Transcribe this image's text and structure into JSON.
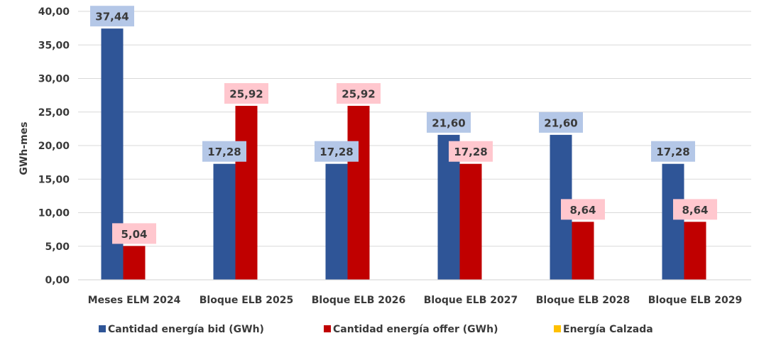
{
  "chart_data": {
    "type": "bar",
    "title": "",
    "xlabel": "",
    "ylabel": "GWh-mes",
    "ylim": [
      0,
      40
    ],
    "yticks": [
      "0,00",
      "5,00",
      "10,00",
      "15,00",
      "20,00",
      "25,00",
      "30,00",
      "35,00",
      "40,00"
    ],
    "grid": true,
    "legend_position": "bottom",
    "categories": [
      "Meses ELM 2024",
      "Bloque ELB 2025",
      "Bloque ELB 2026",
      "Bloque ELB 2027",
      "Bloque ELB 2028",
      "Bloque ELB 2029"
    ],
    "series": [
      {
        "name": "Cantidad energía bid (GWh)",
        "color": "#2F5597",
        "label_bg": "#B4C7E7",
        "values": [
          37.44,
          17.28,
          17.28,
          21.6,
          21.6,
          17.28
        ],
        "labels": [
          "37,44",
          "17,28",
          "17,28",
          "21,60",
          "21,60",
          "17,28"
        ]
      },
      {
        "name": "Cantidad energía offer (GWh)",
        "color": "#C00000",
        "label_bg": "#FFC7CE",
        "values": [
          5.04,
          25.92,
          25.92,
          17.28,
          8.64,
          8.64
        ],
        "labels": [
          "5,04",
          "25,92",
          "25,92",
          "17,28",
          "8,64",
          "8,64"
        ]
      },
      {
        "name": "Energía Calzada",
        "color": "#FFC000",
        "values": [
          0,
          0,
          0,
          0,
          0,
          0
        ],
        "labels": []
      }
    ]
  }
}
